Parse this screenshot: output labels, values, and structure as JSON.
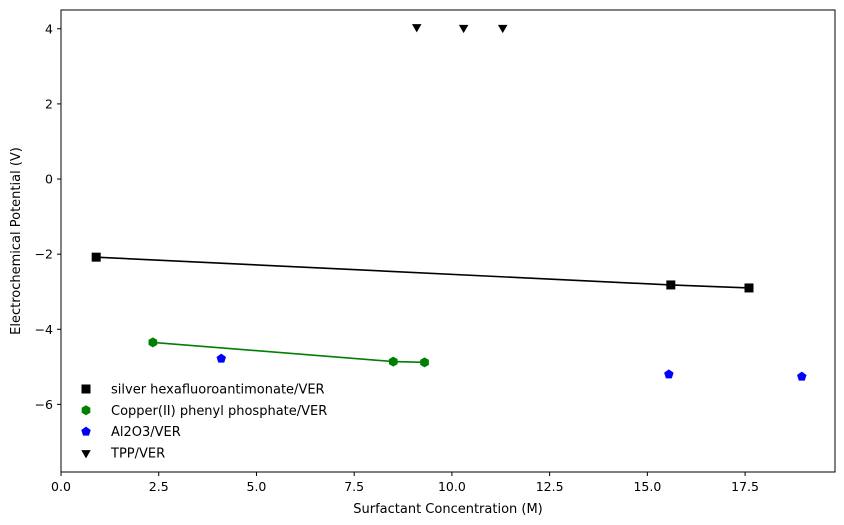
{
  "chart_data": {
    "type": "scatter",
    "title": "",
    "xlabel": "Surfactant Concentration (M)",
    "ylabel": "Electrochemical Potential (V)",
    "xlim": [
      0,
      19.8
    ],
    "ylim": [
      -7.8,
      4.5
    ],
    "xticks": [
      0.0,
      2.5,
      5.0,
      7.5,
      10.0,
      12.5,
      15.0,
      17.5
    ],
    "xtick_labels": [
      "0.0",
      "2.5",
      "5.0",
      "7.5",
      "10.0",
      "12.5",
      "15.0",
      "17.5"
    ],
    "yticks": [
      -6,
      -4,
      -2,
      0,
      2,
      4
    ],
    "ytick_labels": [
      "−6",
      "−4",
      "−2",
      "0",
      "2",
      "4"
    ],
    "grid": false,
    "legend_position": "lower-left",
    "series": [
      {
        "name": "silver hexafluoroantimonate/VER",
        "marker": "square",
        "color": "#000000",
        "line": true,
        "x": [
          0.9,
          15.6,
          17.6
        ],
        "y": [
          -2.08,
          -2.82,
          -2.9
        ]
      },
      {
        "name": "Copper(II) phenyl phosphate/VER",
        "marker": "hexagon",
        "color": "#008000",
        "line": true,
        "x": [
          2.35,
          8.5,
          9.3
        ],
        "y": [
          -4.35,
          -4.86,
          -4.88
        ]
      },
      {
        "name": "Al2O3/VER",
        "marker": "pentagon",
        "color": "#0000ff",
        "line": false,
        "x": [
          4.1,
          15.55,
          18.95
        ],
        "y": [
          -4.78,
          -5.2,
          -5.26
        ]
      },
      {
        "name": "TPP/VER",
        "marker": "triangle-down",
        "color": "#000000",
        "line": false,
        "x": [
          9.1,
          10.3,
          11.3
        ],
        "y": [
          4.05,
          4.03,
          4.03
        ]
      }
    ]
  }
}
